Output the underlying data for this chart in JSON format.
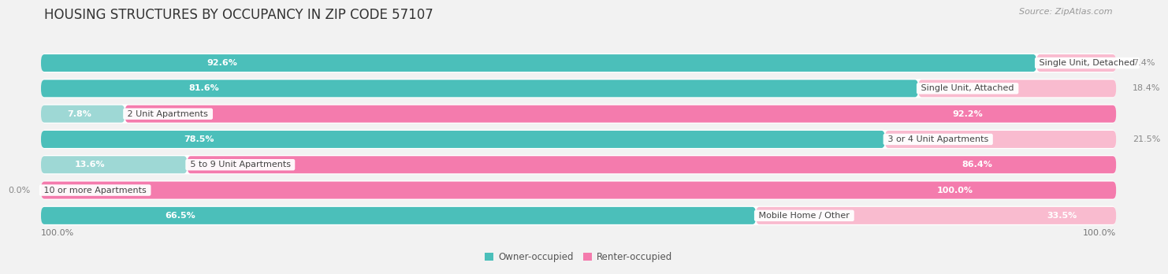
{
  "title": "HOUSING STRUCTURES BY OCCUPANCY IN ZIP CODE 57107",
  "source": "Source: ZipAtlas.com",
  "categories": [
    "Single Unit, Detached",
    "Single Unit, Attached",
    "2 Unit Apartments",
    "3 or 4 Unit Apartments",
    "5 to 9 Unit Apartments",
    "10 or more Apartments",
    "Mobile Home / Other"
  ],
  "owner_pct": [
    92.6,
    81.6,
    7.8,
    78.5,
    13.6,
    0.0,
    66.5
  ],
  "renter_pct": [
    7.4,
    18.4,
    92.2,
    21.5,
    86.4,
    100.0,
    33.5
  ],
  "owner_color": "#4BBFBA",
  "renter_color": "#F47BAD",
  "owner_light_color": "#9ED8D5",
  "renter_light_color": "#F9BBCF",
  "bg_color": "#F2F2F2",
  "row_bg_color": "#E8E8E8",
  "title_fontsize": 12,
  "pct_fontsize": 8,
  "cat_fontsize": 8,
  "source_fontsize": 8,
  "legend_fontsize": 8.5,
  "axis_label_fontsize": 8
}
